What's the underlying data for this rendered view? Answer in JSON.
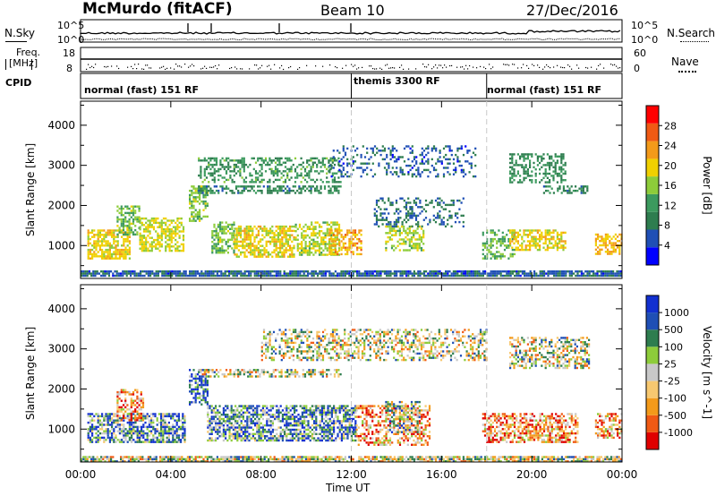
{
  "header": {
    "station": "McMurdo (fitACF)",
    "beam": "Beam 10",
    "date": "27/Dec/2016"
  },
  "top_panels": {
    "nsky_label": "N.Sky",
    "nsearch_label": "N.Search",
    "noise_ticks": [
      "10^5",
      "10^0"
    ],
    "freq_label_1": "Freq.",
    "freq_label_2": "[MHz]",
    "freq_ticks": [
      "18",
      "8"
    ],
    "nave_label": "Nave",
    "nave_ticks": [
      "60",
      "0"
    ],
    "cpid_label": "CPID",
    "cpid_segments": [
      {
        "text": "normal (fast) 151 RF",
        "start_hour": 0,
        "end_hour": 12
      },
      {
        "text": "themis 3300 RF",
        "start_hour": 12,
        "end_hour": 18
      },
      {
        "text": "normal (fast) 151 RF",
        "start_hour": 18,
        "end_hour": 24
      }
    ]
  },
  "colors": {
    "power_scale": [
      "#0000ff",
      "#1f4fb5",
      "#2e7d4f",
      "#3c9a5e",
      "#8dcc3a",
      "#f0d000",
      "#f39a1a",
      "#f05a14",
      "#ff0000"
    ],
    "velocity_scale": [
      "#e00000",
      "#f05a14",
      "#f39a1a",
      "#f7c870",
      "#c8c8c8",
      "#8dcc3a",
      "#2e7d4f",
      "#1f4fb5",
      "#1230d0"
    ]
  },
  "chart_data": [
    {
      "type": "heatmap",
      "title": "",
      "xlabel": "",
      "ylabel": "Slant Range [km]",
      "x_range_hours": [
        0,
        24
      ],
      "ylim": [
        180,
        4600
      ],
      "y_ticks": [
        1000,
        2000,
        3000,
        4000
      ],
      "colorbar": {
        "label": "Power [dB]",
        "ticks": [
          "4",
          "8",
          "12",
          "16",
          "20",
          "24",
          "28"
        ],
        "range": [
          0,
          30
        ]
      },
      "echo_regions": [
        {
          "t0": 0.0,
          "t1": 24.0,
          "r0": 220,
          "r1": 380,
          "value": 6,
          "density": 0.85
        },
        {
          "t0": 0.3,
          "t1": 2.2,
          "r0": 650,
          "r1": 1400,
          "value": 18,
          "density": 0.7
        },
        {
          "t0": 1.6,
          "t1": 2.6,
          "r0": 1300,
          "r1": 2000,
          "value": 14,
          "density": 0.55
        },
        {
          "t0": 2.6,
          "t1": 4.6,
          "r0": 850,
          "r1": 1700,
          "value": 17,
          "density": 0.6
        },
        {
          "t0": 4.8,
          "t1": 5.6,
          "r0": 1600,
          "r1": 2500,
          "value": 15,
          "density": 0.6
        },
        {
          "t0": 5.8,
          "t1": 6.8,
          "r0": 800,
          "r1": 1600,
          "value": 14,
          "density": 0.55
        },
        {
          "t0": 6.8,
          "t1": 9.5,
          "r0": 700,
          "r1": 1500,
          "value": 18,
          "density": 0.65
        },
        {
          "t0": 9.5,
          "t1": 11.5,
          "r0": 750,
          "r1": 1600,
          "value": 16,
          "density": 0.55
        },
        {
          "t0": 11.0,
          "t1": 12.4,
          "r0": 800,
          "r1": 1400,
          "value": 21,
          "density": 0.6
        },
        {
          "t0": 5.2,
          "t1": 11.5,
          "r0": 2300,
          "r1": 2500,
          "value": 9,
          "density": 0.55
        },
        {
          "t0": 5.2,
          "t1": 11.5,
          "r0": 2600,
          "r1": 3200,
          "value": 11,
          "density": 0.4
        },
        {
          "t0": 11.0,
          "t1": 17.5,
          "r0": 2700,
          "r1": 3500,
          "value": 6,
          "density": 0.25
        },
        {
          "t0": 13.5,
          "t1": 15.2,
          "r0": 900,
          "r1": 1500,
          "value": 16,
          "density": 0.55
        },
        {
          "t0": 13.0,
          "t1": 17.0,
          "r0": 1500,
          "r1": 2200,
          "value": 7,
          "density": 0.3
        },
        {
          "t0": 17.8,
          "t1": 19.2,
          "r0": 700,
          "r1": 1400,
          "value": 13,
          "density": 0.45
        },
        {
          "t0": 19.0,
          "t1": 21.5,
          "r0": 900,
          "r1": 1400,
          "value": 18,
          "density": 0.55
        },
        {
          "t0": 19.0,
          "t1": 21.5,
          "r0": 2600,
          "r1": 3300,
          "value": 10,
          "density": 0.45
        },
        {
          "t0": 20.5,
          "t1": 22.5,
          "r0": 2300,
          "r1": 2500,
          "value": 9,
          "density": 0.5
        },
        {
          "t0": 22.8,
          "t1": 24.0,
          "r0": 800,
          "r1": 1300,
          "value": 20,
          "density": 0.55
        }
      ]
    },
    {
      "type": "heatmap",
      "title": "",
      "xlabel": "Time UT",
      "ylabel": "Slant Range [km]",
      "x_range_hours": [
        0,
        24
      ],
      "x_ticks": [
        "00:00",
        "04:00",
        "08:00",
        "12:00",
        "16:00",
        "20:00",
        "00:00"
      ],
      "ylim": [
        180,
        4600
      ],
      "y_ticks": [
        1000,
        2000,
        3000,
        4000
      ],
      "colorbar": {
        "label": "Velocity [m s^-1]",
        "ticks": [
          "-1000",
          "-500",
          "-100",
          "-25",
          "25",
          "100",
          "500",
          "1000"
        ]
      },
      "echo_regions": [
        {
          "t0": 0.0,
          "t1": 24.0,
          "r0": 220,
          "r1": 330,
          "value": 4,
          "density": 0.8
        },
        {
          "t0": 0.3,
          "t1": 4.6,
          "r0": 650,
          "r1": 1400,
          "value": 6,
          "density": 0.65
        },
        {
          "t0": 1.6,
          "t1": 2.8,
          "r0": 1200,
          "r1": 2000,
          "value": 2,
          "density": 0.55
        },
        {
          "t0": 4.8,
          "t1": 5.6,
          "r0": 1600,
          "r1": 2500,
          "value": 7,
          "density": 0.55
        },
        {
          "t0": 5.6,
          "t1": 12.2,
          "r0": 700,
          "r1": 1600,
          "value": 6,
          "density": 0.65
        },
        {
          "t0": 5.2,
          "t1": 11.5,
          "r0": 2300,
          "r1": 2500,
          "value": 4,
          "density": 0.5
        },
        {
          "t0": 8.0,
          "t1": 18.0,
          "r0": 2700,
          "r1": 3500,
          "value": 4,
          "density": 0.45
        },
        {
          "t0": 12.2,
          "t1": 15.5,
          "r0": 600,
          "r1": 1600,
          "value": 2,
          "density": 0.45
        },
        {
          "t0": 13.5,
          "t1": 15.0,
          "r0": 900,
          "r1": 1700,
          "value": 5,
          "density": 0.5
        },
        {
          "t0": 17.8,
          "t1": 22.0,
          "r0": 650,
          "r1": 1400,
          "value": 2,
          "density": 0.6
        },
        {
          "t0": 19.0,
          "t1": 22.5,
          "r0": 2500,
          "r1": 3300,
          "value": 4,
          "density": 0.5
        },
        {
          "t0": 22.8,
          "t1": 24.0,
          "r0": 800,
          "r1": 1400,
          "value": 2,
          "density": 0.55
        }
      ]
    }
  ]
}
